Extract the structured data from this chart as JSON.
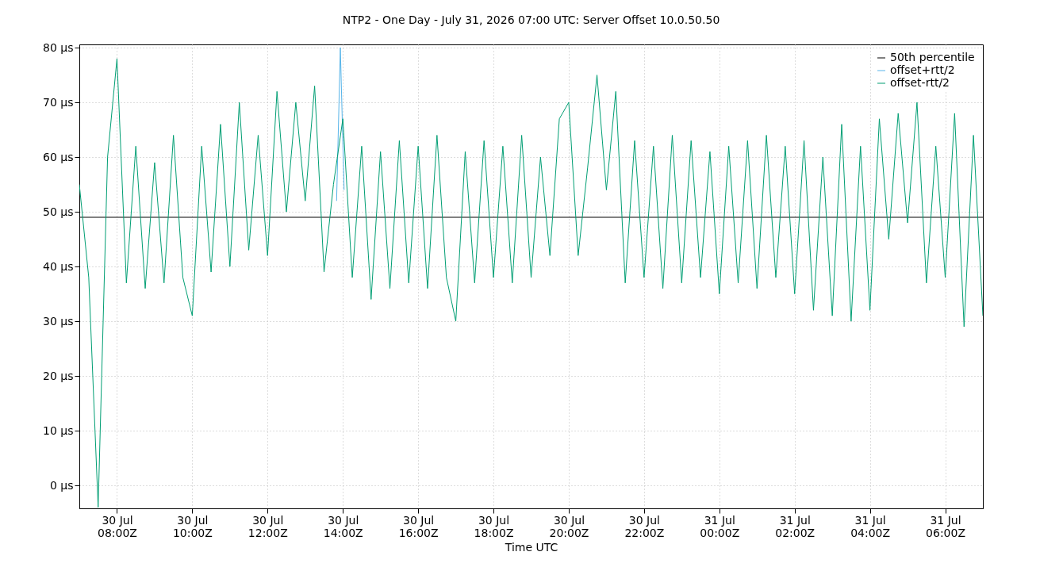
{
  "chart_data": {
    "type": "line",
    "title": "NTP2 - One Day - July 31, 2026 07:00 UTC: Server Offset 10.0.50.50",
    "xlabel": "Time UTC",
    "xlim": [
      "2026-07-30T07:00",
      "2026-07-31T07:00"
    ],
    "xticks": [
      {
        "value": "2026-07-30T08:00",
        "label": "30 Jul\n08:00Z"
      },
      {
        "value": "2026-07-30T10:00",
        "label": "30 Jul\n10:00Z"
      },
      {
        "value": "2026-07-30T12:00",
        "label": "30 Jul\n12:00Z"
      },
      {
        "value": "2026-07-30T14:00",
        "label": "30 Jul\n14:00Z"
      },
      {
        "value": "2026-07-30T16:00",
        "label": "30 Jul\n16:00Z"
      },
      {
        "value": "2026-07-30T18:00",
        "label": "30 Jul\n18:00Z"
      },
      {
        "value": "2026-07-30T20:00",
        "label": "30 Jul\n20:00Z"
      },
      {
        "value": "2026-07-30T22:00",
        "label": "30 Jul\n22:00Z"
      },
      {
        "value": "2026-07-31T00:00",
        "label": "31 Jul\n00:00Z"
      },
      {
        "value": "2026-07-31T02:00",
        "label": "31 Jul\n02:00Z"
      },
      {
        "value": "2026-07-31T04:00",
        "label": "31 Jul\n04:00Z"
      },
      {
        "value": "2026-07-31T06:00",
        "label": "31 Jul\n06:00Z"
      }
    ],
    "ylim": [
      -4.2,
      80.6
    ],
    "yticks": [
      {
        "value": 0,
        "label": "0 µs"
      },
      {
        "value": 10,
        "label": "10 µs"
      },
      {
        "value": 20,
        "label": "20 µs"
      },
      {
        "value": 30,
        "label": "30 µs"
      },
      {
        "value": 40,
        "label": "40 µs"
      },
      {
        "value": 50,
        "label": "50 µs"
      },
      {
        "value": 60,
        "label": "60 µs"
      },
      {
        "value": 70,
        "label": "70 µs"
      },
      {
        "value": 80,
        "label": "80 µs"
      }
    ],
    "grid": true,
    "legend": "top right",
    "marker": "none",
    "line_style": "solid",
    "series": [
      {
        "name": "50th percentile",
        "color": "#000000",
        "x": [
          "2026-07-30T07:00",
          "2026-07-31T07:00"
        ],
        "values": [
          49,
          49
        ]
      },
      {
        "name": "offset+rtt/2",
        "color": "#56b4e9",
        "x": [
          "2026-07-30T13:50",
          "2026-07-30T13:56",
          "2026-07-30T14:02"
        ],
        "values": [
          52,
          80,
          54
        ]
      },
      {
        "name": "offset-rtt/2",
        "color": "#009e73",
        "x": [
          "2026-07-30T07:00",
          "2026-07-30T07:15",
          "2026-07-30T07:30",
          "2026-07-30T07:45",
          "2026-07-30T08:00",
          "2026-07-30T08:15",
          "2026-07-30T08:30",
          "2026-07-30T08:45",
          "2026-07-30T09:00",
          "2026-07-30T09:15",
          "2026-07-30T09:30",
          "2026-07-30T09:45",
          "2026-07-30T10:00",
          "2026-07-30T10:15",
          "2026-07-30T10:30",
          "2026-07-30T10:45",
          "2026-07-30T11:00",
          "2026-07-30T11:15",
          "2026-07-30T11:30",
          "2026-07-30T11:45",
          "2026-07-30T12:00",
          "2026-07-30T12:15",
          "2026-07-30T12:30",
          "2026-07-30T12:45",
          "2026-07-30T13:00",
          "2026-07-30T13:15",
          "2026-07-30T13:30",
          "2026-07-30T13:45",
          "2026-07-30T14:00",
          "2026-07-30T14:15",
          "2026-07-30T14:30",
          "2026-07-30T14:45",
          "2026-07-30T15:00",
          "2026-07-30T15:15",
          "2026-07-30T15:30",
          "2026-07-30T15:45",
          "2026-07-30T16:00",
          "2026-07-30T16:15",
          "2026-07-30T16:30",
          "2026-07-30T16:45",
          "2026-07-30T17:00",
          "2026-07-30T17:15",
          "2026-07-30T17:30",
          "2026-07-30T17:45",
          "2026-07-30T18:00",
          "2026-07-30T18:15",
          "2026-07-30T18:30",
          "2026-07-30T18:45",
          "2026-07-30T19:00",
          "2026-07-30T19:15",
          "2026-07-30T19:30",
          "2026-07-30T19:45",
          "2026-07-30T20:00",
          "2026-07-30T20:15",
          "2026-07-30T20:30",
          "2026-07-30T20:45",
          "2026-07-30T21:00",
          "2026-07-30T21:15",
          "2026-07-30T21:30",
          "2026-07-30T21:45",
          "2026-07-30T22:00",
          "2026-07-30T22:15",
          "2026-07-30T22:30",
          "2026-07-30T22:45",
          "2026-07-30T23:00",
          "2026-07-30T23:15",
          "2026-07-30T23:30",
          "2026-07-30T23:45",
          "2026-07-31T00:00",
          "2026-07-31T00:15",
          "2026-07-31T00:30",
          "2026-07-31T00:45",
          "2026-07-31T01:00",
          "2026-07-31T01:15",
          "2026-07-31T01:30",
          "2026-07-31T01:45",
          "2026-07-31T02:00",
          "2026-07-31T02:15",
          "2026-07-31T02:30",
          "2026-07-31T02:45",
          "2026-07-31T03:00",
          "2026-07-31T03:15",
          "2026-07-31T03:30",
          "2026-07-31T03:45",
          "2026-07-31T04:00",
          "2026-07-31T04:15",
          "2026-07-31T04:30",
          "2026-07-31T04:45",
          "2026-07-31T05:00",
          "2026-07-31T05:15",
          "2026-07-31T05:30",
          "2026-07-31T05:45",
          "2026-07-31T06:00",
          "2026-07-31T06:15",
          "2026-07-31T06:30",
          "2026-07-31T06:45",
          "2026-07-31T07:00"
        ],
        "values": [
          55,
          38,
          -4,
          60,
          78,
          37,
          62,
          36,
          59,
          37,
          64,
          38,
          31,
          62,
          39,
          66,
          40,
          70,
          43,
          64,
          42,
          72,
          50,
          70,
          52,
          73,
          39,
          55,
          67,
          38,
          62,
          34,
          61,
          36,
          63,
          37,
          62,
          36,
          64,
          38,
          30,
          61,
          37,
          63,
          38,
          62,
          37,
          64,
          38,
          60,
          42,
          67,
          70,
          42,
          58,
          75,
          54,
          72,
          37,
          63,
          38,
          62,
          36,
          64,
          37,
          63,
          38,
          61,
          35,
          62,
          37,
          63,
          36,
          64,
          38,
          62,
          35,
          63,
          32,
          60,
          31,
          66,
          30,
          62,
          32,
          67,
          45,
          68,
          48,
          70,
          37,
          62,
          38,
          68,
          29,
          64,
          31
        ]
      }
    ]
  }
}
